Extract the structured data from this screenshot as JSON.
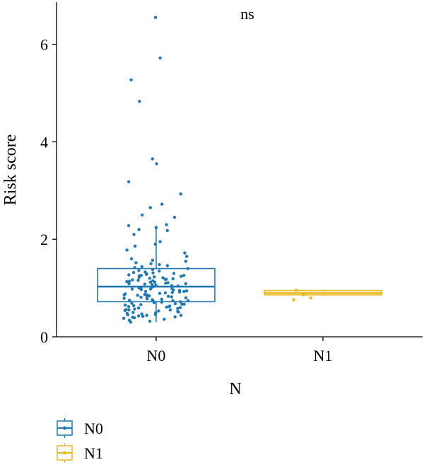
{
  "chart_data": {
    "type": "box",
    "title": "",
    "xlabel": "N",
    "ylabel": "Risk score",
    "categories": [
      "N0",
      "N1"
    ],
    "ylim": [
      0,
      6.7
    ],
    "yticks": [
      0,
      2,
      4,
      6
    ],
    "annotation": "ns",
    "grid": false,
    "legend_position": "bottom-left",
    "series": [
      {
        "name": "N0",
        "color": "#1f78b4",
        "box": {
          "min": 0.3,
          "q1": 0.72,
          "median": 1.03,
          "q3": 1.4,
          "max": 2.28
        },
        "points": [
          6.55,
          5.72,
          5.27,
          4.83,
          3.65,
          3.55,
          3.18,
          2.93,
          2.72,
          2.65,
          2.5,
          2.45,
          2.3,
          2.28,
          2.24,
          2.2,
          2.18,
          2.1,
          1.95,
          1.9,
          1.86,
          1.78,
          1.72,
          1.65,
          1.6,
          1.57,
          1.55,
          1.52,
          1.5,
          1.48,
          1.46,
          1.44,
          1.42,
          1.4,
          1.38,
          1.36,
          1.35,
          1.33,
          1.32,
          1.3,
          1.29,
          1.28,
          1.27,
          1.26,
          1.25,
          1.24,
          1.23,
          1.22,
          1.21,
          1.2,
          1.19,
          1.18,
          1.17,
          1.16,
          1.15,
          1.14,
          1.13,
          1.12,
          1.11,
          1.1,
          1.09,
          1.08,
          1.07,
          1.06,
          1.05,
          1.04,
          1.03,
          1.02,
          1.01,
          1.0,
          0.99,
          0.98,
          0.97,
          0.96,
          0.95,
          0.94,
          0.93,
          0.92,
          0.91,
          0.9,
          0.89,
          0.88,
          0.87,
          0.86,
          0.85,
          0.84,
          0.83,
          0.82,
          0.81,
          0.8,
          0.79,
          0.78,
          0.77,
          0.76,
          0.75,
          0.74,
          0.73,
          0.72,
          0.71,
          0.7,
          0.69,
          0.68,
          0.67,
          0.66,
          0.65,
          0.64,
          0.63,
          0.62,
          0.61,
          0.6,
          0.59,
          0.58,
          0.57,
          0.56,
          0.55,
          0.54,
          0.53,
          0.52,
          0.51,
          0.5,
          0.49,
          0.48,
          0.47,
          0.46,
          0.45,
          0.44,
          0.43,
          0.42,
          0.41,
          0.4,
          0.39,
          0.38,
          0.36,
          0.34,
          0.32,
          0.3,
          1.12,
          0.98,
          0.86,
          0.74,
          1.31,
          1.05,
          0.93,
          0.67,
          0.55,
          1.18,
          1.26,
          0.81,
          0.62,
          0.44,
          1.09
        ]
      },
      {
        "name": "N1",
        "color": "#e8b820",
        "box": {
          "min": 0.84,
          "q1": 0.86,
          "median": 0.9,
          "q3": 0.95,
          "max": 0.96
        },
        "points": [
          0.96,
          0.86,
          0.8,
          0.76
        ]
      }
    ]
  }
}
